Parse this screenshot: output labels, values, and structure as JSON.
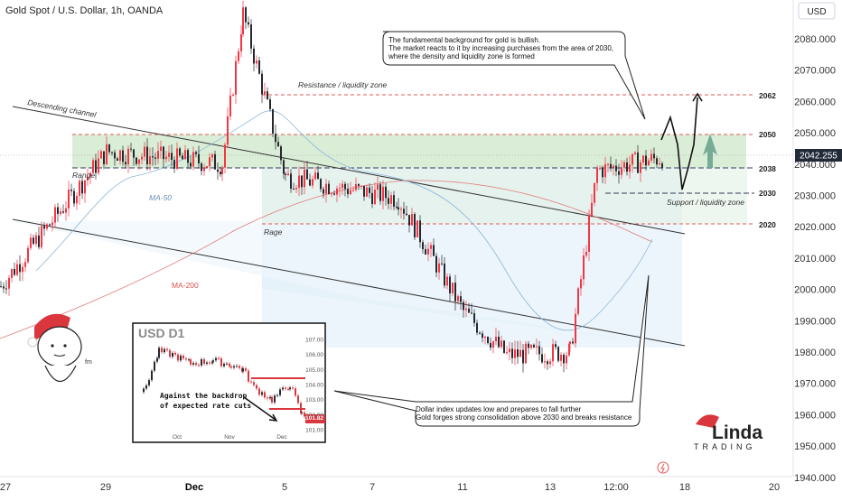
{
  "header": {
    "symbol_title": "Gold Spot / U.S. Dollar, 1h, OANDA",
    "currency": "USD"
  },
  "price_axis": {
    "ticks": [
      "2080.000",
      "2070.000",
      "2060.000",
      "2050.000",
      "2040.000",
      "2030.000",
      "2020.000",
      "2010.000",
      "2000.000",
      "1990.000",
      "1980.000",
      "1970.000",
      "1960.000",
      "1950.000",
      "1940.000"
    ],
    "current_price": "2042.255"
  },
  "time_axis": {
    "ticks": [
      "27",
      "29",
      "Dec",
      "5",
      "7",
      "11",
      "13",
      "12:00",
      "18",
      "20"
    ]
  },
  "levels": {
    "l2062": "2062",
    "l2050": "2050",
    "l2038": "2038",
    "l2030": "2030",
    "l2020": "2020"
  },
  "annotations": {
    "descending_channel": "Descending channel",
    "range_left": "Range",
    "range_inner": "Rage",
    "ma50": "MA-50",
    "ma200": "MA-200",
    "resistance": "Resistance / liquidity zone",
    "support": "Support / liquidity zone"
  },
  "callouts": {
    "top_line1": "The fundamental background for gold is bullish.",
    "top_line2": "The market reacts to it by increasing purchases from the area of 2030,",
    "top_line3": "where the density and liquidity zone is formed",
    "bottom_line1": "Dollar index updates low and prepares to fall further",
    "bottom_line2": "Gold forges strong consolidation above 2030 and breaks resistance"
  },
  "inset": {
    "title": "USD D1",
    "caption_line1": "Against the backdrop",
    "caption_line2": "of expected rate cuts",
    "y_ticks": [
      "107.00",
      "106.00",
      "105.00",
      "104.00",
      "103.00",
      "102.00",
      "101.82",
      "101.00"
    ],
    "x_ticks": [
      "Oct",
      "Nov",
      "Dec"
    ]
  },
  "branding": {
    "handle": "fm",
    "logo_word": "Linda",
    "logo_sub": "TRADING"
  },
  "colors": {
    "bull": "#089981",
    "bear": "#f23645",
    "candle": "#26282f",
    "zone_green": "#d4ead0",
    "zone_blue": "#dcedf7",
    "ma50": "#8fb7d8",
    "ma200": "#e07a7a",
    "accent_green": "#6aa38f"
  },
  "chart_data": {
    "type": "candlestick",
    "title": "Gold Spot / U.S. Dollar, 1h, OANDA",
    "x_ticks": [
      "27",
      "29",
      "Dec",
      "5",
      "7",
      "11",
      "13",
      "12:00",
      "18",
      "20"
    ],
    "ylim": [
      1938,
      2088
    ],
    "y_unit": "USD",
    "current_price": 2042.255,
    "horizontal_levels": [
      2062,
      2050,
      2038,
      2030,
      2020
    ],
    "approx_close_path": [
      {
        "x": "27",
        "y": 2001
      },
      {
        "x": "29",
        "y": 2044
      },
      {
        "x": "Dec",
        "y": 2040
      },
      {
        "x": "peak",
        "y": 2088
      },
      {
        "x": "5",
        "y": 2036
      },
      {
        "x": "7",
        "y": 2029
      },
      {
        "x": "11",
        "y": 1993
      },
      {
        "x": "11-12",
        "y": 1979
      },
      {
        "x": "13",
        "y": 1980
      },
      {
        "x": "12:00",
        "y": 2038
      },
      {
        "x": "last",
        "y": 2042.255
      }
    ],
    "inset": {
      "title": "USD D1",
      "ylim": [
        101,
        107
      ],
      "x_ticks": [
        "Oct",
        "Nov",
        "Dec"
      ],
      "last_value": 101.82
    }
  }
}
